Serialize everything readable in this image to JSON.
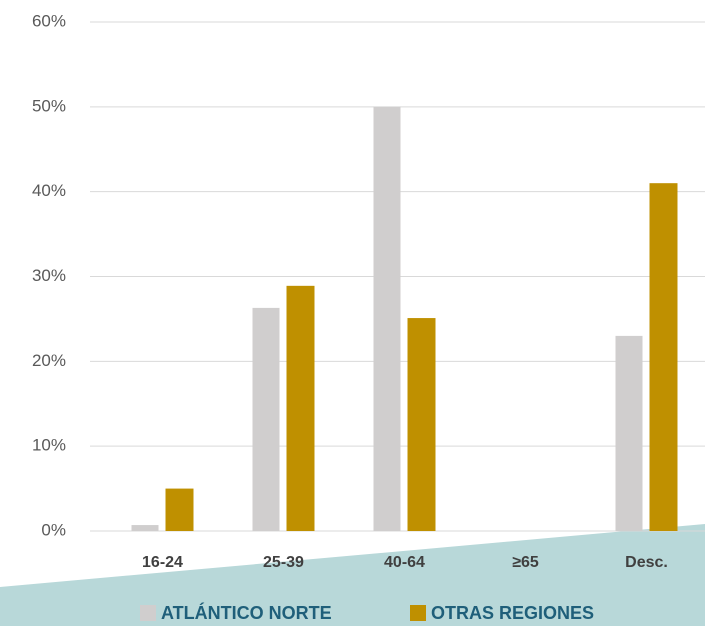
{
  "chart_data": {
    "type": "bar",
    "categories": [
      "16-24",
      "25-39",
      "40-64",
      "≥65",
      "Desc."
    ],
    "series": [
      {
        "name": "ATLÁNTICO NORTE",
        "color": "#d0cece",
        "values": [
          0.7,
          26.3,
          50,
          0,
          23
        ]
      },
      {
        "name": "OTRAS REGIONES",
        "color": "#bf9000",
        "values": [
          5,
          28.9,
          25.1,
          0,
          41
        ]
      }
    ],
    "ylim": [
      0,
      60
    ],
    "yticks": [
      {
        "value": 0,
        "label": "0%"
      },
      {
        "value": 10,
        "label": "10%"
      },
      {
        "value": 20,
        "label": "20%"
      },
      {
        "value": 30,
        "label": "30%"
      },
      {
        "value": 40,
        "label": "40%"
      },
      {
        "value": 50,
        "label": "50%"
      },
      {
        "value": 60,
        "label": "60%"
      }
    ],
    "grid": true
  }
}
